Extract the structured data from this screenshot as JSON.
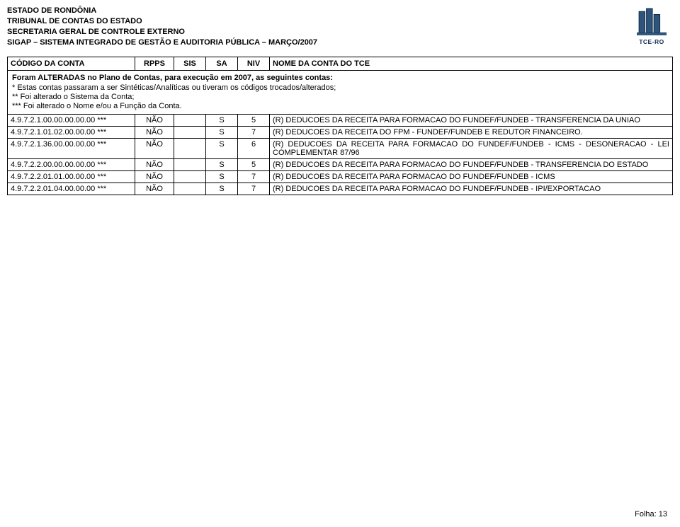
{
  "header": {
    "line1": "ESTADO DE RONDÔNIA",
    "line2": "TRIBUNAL DE CONTAS DO ESTADO",
    "line3": "SECRETARIA GERAL DE CONTROLE EXTERNO",
    "line4_prefix": "SIGAP – SISTEMA INTEGRADO DE GESTÃO E AUDITORIA PÚBLICA",
    "line4_suffix": " –  MARÇO/2007",
    "logo_label": "TCE-RO"
  },
  "columns": {
    "codigo": "CÓDIGO DA CONTA",
    "rpps": "RPPS",
    "sis": "SIS",
    "sa": "SA",
    "niv": "NIV",
    "nome": "NOME DA CONTA DO TCE"
  },
  "notes": {
    "title": "Foram ALTERADAS no Plano de Contas, para execução em 2007, as seguintes contas:",
    "l1": "* Estas contas passaram a ser Sintéticas/Analíticas ou tiveram os códigos trocados/alterados;",
    "l2": " ** Foi alterado o Sistema da Conta;",
    "l3": " *** Foi alterado o Nome e/ou a Função da Conta."
  },
  "rows": [
    {
      "codigo": "4.9.7.2.1.00.00.00.00.00 ***",
      "rpps": "NÃO",
      "sis": "",
      "sa": "S",
      "niv": "5",
      "nome": "(R) DEDUCOES DA RECEITA PARA FORMACAO DO FUNDEF/FUNDEB - TRANSFERENCIA DA UNIAO"
    },
    {
      "codigo": "4.9.7.2.1.01.02.00.00.00 ***",
      "rpps": "NÃO",
      "sis": "",
      "sa": "S",
      "niv": "7",
      "nome": "(R) DEDUCOES DA RECEITA DO FPM - FUNDEF/FUNDEB E REDUTOR FINANCEIRO."
    },
    {
      "codigo": "4.9.7.2.1.36.00.00.00.00 ***",
      "rpps": "NÃO",
      "sis": "",
      "sa": "S",
      "niv": "6",
      "nome": "(R) DEDUCOES DA RECEITA PARA FORMACAO DO FUNDEF/FUNDEB - ICMS - DESONERACAO - LEI COMPLEMENTAR 87/96"
    },
    {
      "codigo": "4.9.7.2.2.00.00.00.00.00 ***",
      "rpps": "NÃO",
      "sis": "",
      "sa": "S",
      "niv": "5",
      "nome": "(R) DEDUCOES DA RECEITA PARA FORMACAO DO FUNDEF/FUNDEB - TRANSFERENCIA DO ESTADO"
    },
    {
      "codigo": "4.9.7.2.2.01.01.00.00.00 ***",
      "rpps": "NÃO",
      "sis": "",
      "sa": "S",
      "niv": "7",
      "nome": "(R) DEDUCOES DA RECEITA PARA FORMACAO DO FUNDEF/FUNDEB - ICMS"
    },
    {
      "codigo": "4.9.7.2.2.01.04.00.00.00 ***",
      "rpps": "NÃO",
      "sis": "",
      "sa": "S",
      "niv": "7",
      "nome": "(R) DEDUCOES DA RECEITA PARA FORMACAO DO FUNDEF/FUNDEB - IPI/EXPORTACAO"
    }
  ],
  "footer": {
    "folha_label": "Folha: 13"
  }
}
